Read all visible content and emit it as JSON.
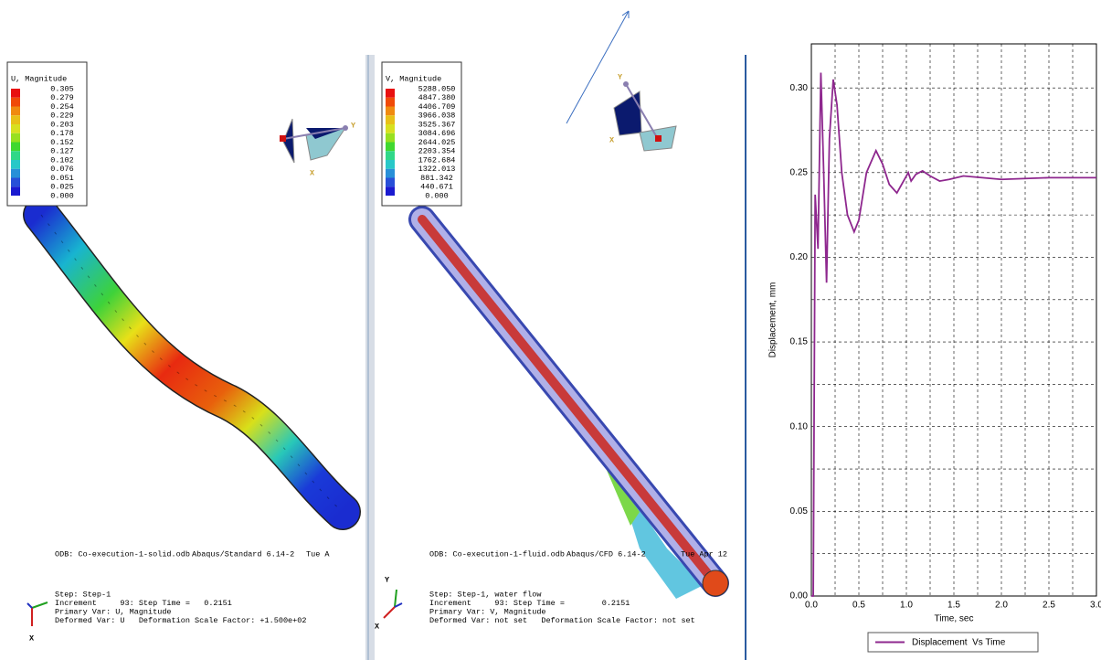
{
  "solid_viewport": {
    "legend": {
      "title": "U, Magnitude",
      "values": [
        "0.305",
        "0.279",
        "0.254",
        "0.229",
        "0.203",
        "0.178",
        "0.152",
        "0.127",
        "0.102",
        "0.076",
        "0.051",
        "0.025",
        "0.000"
      ]
    },
    "odb_line": [
      "ODB: Co-execution-1-solid.odb",
      "Abaqus/Standard 6.14-2",
      "Tue A"
    ],
    "step_lines": [
      "Step: Step-1",
      "Increment     93: Step Time =   0.2151",
      "Primary Var: U, Magnitude",
      "Deformed Var: U   Deformation Scale Factor: +1.500e+02"
    ],
    "axis_labels": [
      "X",
      "Y",
      "X"
    ]
  },
  "fluid_viewport": {
    "legend": {
      "title": "V, Magnitude",
      "values": [
        "5288.050",
        "4847.380",
        "4406.709",
        "3966.038",
        "3525.367",
        "3084.696",
        "2644.025",
        "2203.354",
        "1762.684",
        "1322.013",
        "881.342",
        "440.671",
        "0.000"
      ]
    },
    "odb_line": [
      "ODB: Co-execution-1-fluid.odb",
      "Abaqus/CFD 6.14-2",
      "Tue Apr 12"
    ],
    "step_lines": [
      "Step: Step-1, water flow",
      "Increment     93: Step Time =        0.2151",
      "Primary Var: V, Magnitude",
      "Deformed Var: not set   Deformation Scale Factor: not set"
    ],
    "axis_labels": [
      "Y",
      "X",
      "Y",
      "X"
    ]
  },
  "chart_data": {
    "type": "line",
    "x_label": "Time, sec",
    "y_label": "Displacement, mm",
    "xlim": [
      0,
      3
    ],
    "ylim": [
      0,
      0.326
    ],
    "xticks": [
      {
        "value": 0,
        "label": "0.0"
      },
      {
        "value": 0.5,
        "label": "0.5"
      },
      {
        "value": 1,
        "label": "1.0"
      },
      {
        "value": 1.5,
        "label": "1.5"
      },
      {
        "value": 2,
        "label": "2.0"
      },
      {
        "value": 2.5,
        "label": "2.5"
      },
      {
        "value": 3,
        "label": "3.0"
      }
    ],
    "yticks": [
      {
        "value": 0,
        "label": "0.00"
      },
      {
        "value": 0.05,
        "label": "0.05"
      },
      {
        "value": 0.1,
        "label": "0.10"
      },
      {
        "value": 0.15,
        "label": "0.15"
      },
      {
        "value": 0.2,
        "label": "0.20"
      },
      {
        "value": 0.25,
        "label": "0.25"
      },
      {
        "value": 0.3,
        "label": "0.30"
      }
    ],
    "grid": true,
    "x": [
      0,
      0.02,
      0.04,
      0.07,
      0.1,
      0.13,
      0.16,
      0.19,
      0.23,
      0.27,
      0.32,
      0.38,
      0.45,
      0.5,
      0.58,
      0.68,
      0.75,
      0.82,
      0.9,
      0.96,
      1.02,
      1.05,
      1.1,
      1.17,
      1.25,
      1.35,
      1.45,
      1.6,
      1.8,
      2.0,
      2.5,
      3.0
    ],
    "series": [
      {
        "name": "Displacement  Vs Time",
        "color": "#8e278e",
        "values": [
          0,
          0,
          0.237,
          0.205,
          0.309,
          0.25,
          0.185,
          0.27,
          0.305,
          0.29,
          0.25,
          0.225,
          0.215,
          0.222,
          0.25,
          0.263,
          0.255,
          0.243,
          0.238,
          0.244,
          0.25,
          0.245,
          0.249,
          0.251,
          0.248,
          0.245,
          0.246,
          0.248,
          0.247,
          0.246,
          0.247,
          0.247
        ]
      }
    ]
  }
}
